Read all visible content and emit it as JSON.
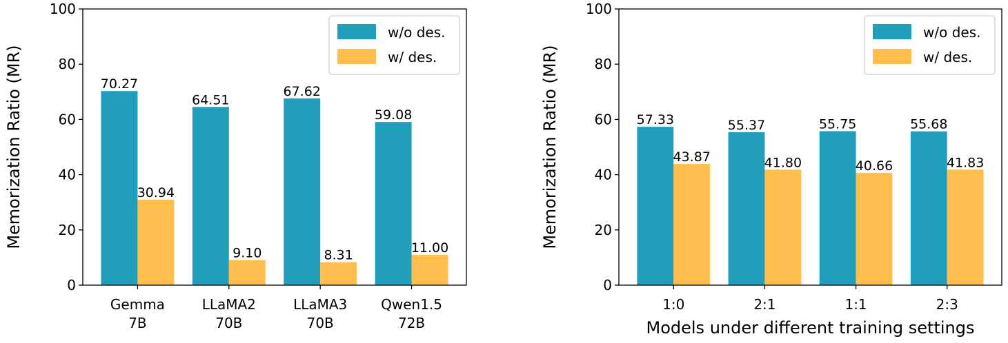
{
  "colors": {
    "wo": "#219EBC",
    "w": "#FFBE4D"
  },
  "chart_data": [
    {
      "type": "bar",
      "title": "",
      "xlabel": "",
      "ylabel": "Memorization Ratio (MR)",
      "ylim": [
        0,
        100
      ],
      "yticks": [
        "0",
        "20",
        "40",
        "60",
        "80",
        "100"
      ],
      "categories": [
        [
          "Gemma",
          "7B"
        ],
        [
          "LLaMA2",
          "70B"
        ],
        [
          "LLaMA3",
          "70B"
        ],
        [
          "Qwen1.5",
          "72B"
        ]
      ],
      "series": [
        {
          "name": "w/o des.",
          "values": [
            70.27,
            64.51,
            67.62,
            59.08
          ],
          "labels": [
            "70.27",
            "64.51",
            "67.62",
            "59.08"
          ]
        },
        {
          "name": "w/ des.",
          "values": [
            30.94,
            9.1,
            8.31,
            11.0
          ],
          "labels": [
            "30.94",
            "9.10",
            "8.31",
            "11.00"
          ]
        }
      ],
      "legend": "top-right",
      "grid": false
    },
    {
      "type": "bar",
      "title": "",
      "xlabel": "Models under different training settings",
      "ylabel": "Memorization Ratio (MR)",
      "ylim": [
        0,
        100
      ],
      "yticks": [
        "0",
        "20",
        "40",
        "60",
        "80",
        "100"
      ],
      "categories": [
        [
          "1:0"
        ],
        [
          "2:1"
        ],
        [
          "1:1"
        ],
        [
          "2:3"
        ]
      ],
      "series": [
        {
          "name": "w/o des.",
          "values": [
            57.33,
            55.37,
            55.75,
            55.68
          ],
          "labels": [
            "57.33",
            "55.37",
            "55.75",
            "55.68"
          ]
        },
        {
          "name": "w/ des.",
          "values": [
            43.87,
            41.8,
            40.66,
            41.83
          ],
          "labels": [
            "43.87",
            "41.80",
            "40.66",
            "41.83"
          ]
        }
      ],
      "legend": "top-right",
      "grid": false
    }
  ]
}
